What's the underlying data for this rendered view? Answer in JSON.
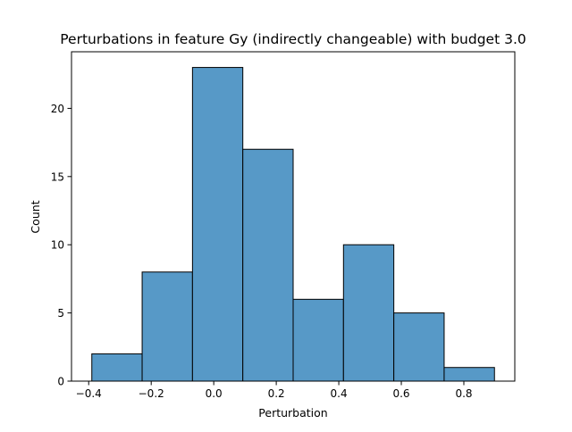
{
  "chart_data": {
    "type": "bar",
    "title": "Perturbations in feature Gy (indirectly changeable) with budget 3.0",
    "xlabel": "Perturbation",
    "ylabel": "Count",
    "bins": [
      {
        "x0": -0.39,
        "x1": -0.229,
        "count": 2
      },
      {
        "x0": -0.229,
        "x1": -0.068,
        "count": 8
      },
      {
        "x0": -0.068,
        "x1": 0.093,
        "count": 23
      },
      {
        "x0": 0.093,
        "x1": 0.254,
        "count": 17
      },
      {
        "x0": 0.254,
        "x1": 0.415,
        "count": 6
      },
      {
        "x0": 0.415,
        "x1": 0.576,
        "count": 10
      },
      {
        "x0": 0.576,
        "x1": 0.737,
        "count": 5
      },
      {
        "x0": 0.737,
        "x1": 0.898,
        "count": 1
      }
    ],
    "xlim": [
      -0.455,
      0.963
    ],
    "ylim": [
      0,
      24.15
    ],
    "x_ticks": [
      {
        "value": -0.4,
        "label": "−0.4"
      },
      {
        "value": -0.2,
        "label": "−0.2"
      },
      {
        "value": 0.0,
        "label": "0.0"
      },
      {
        "value": 0.2,
        "label": "0.2"
      },
      {
        "value": 0.4,
        "label": "0.4"
      },
      {
        "value": 0.6,
        "label": "0.6"
      },
      {
        "value": 0.8,
        "label": "0.8"
      }
    ],
    "y_ticks": [
      {
        "value": 0,
        "label": "0"
      },
      {
        "value": 5,
        "label": "5"
      },
      {
        "value": 10,
        "label": "10"
      },
      {
        "value": 15,
        "label": "15"
      },
      {
        "value": 20,
        "label": "20"
      }
    ],
    "bar_color": "#5799c7",
    "edge_color": "#000000",
    "grid": false,
    "legend": "none"
  }
}
